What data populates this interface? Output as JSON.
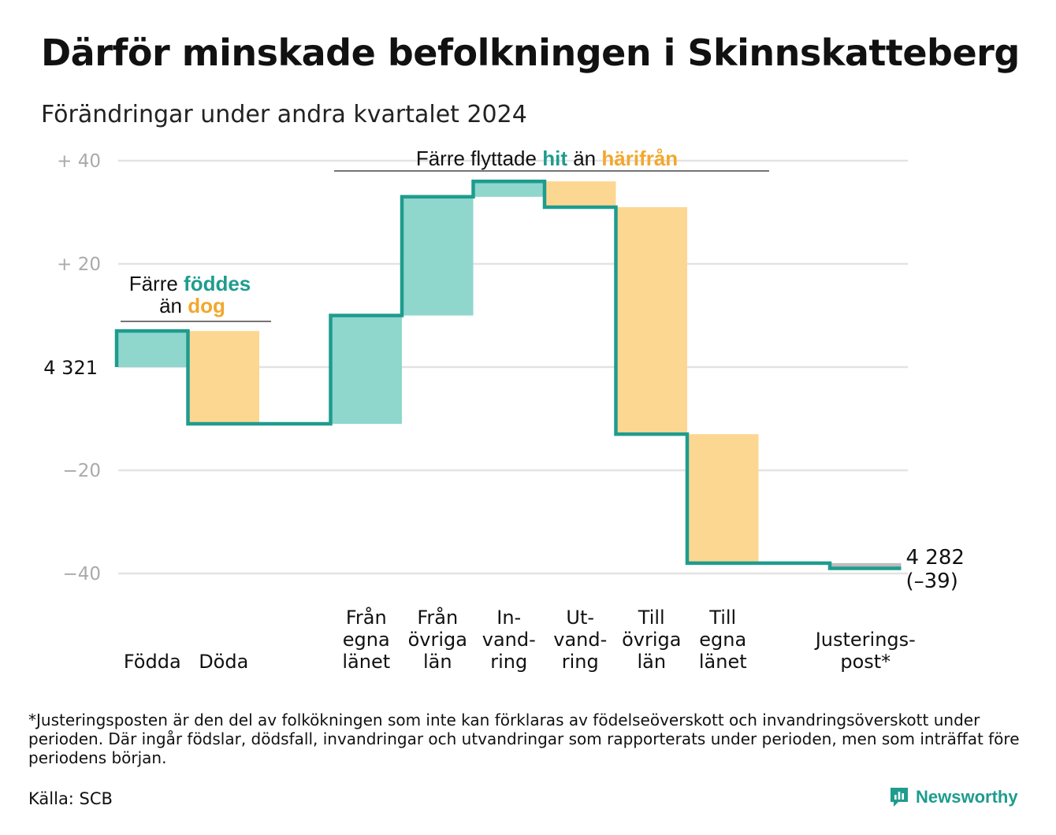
{
  "title": "Därför minskade befolkningen i Skinnskatteberg",
  "subtitle": "Förändringar under andra kvartalet 2024",
  "colors": {
    "increase": "#8fd6cc",
    "decrease": "#fcd792",
    "line": "#1e9c8e",
    "adjust": "#bcbcbc",
    "accent_orange": "#f3a72c"
  },
  "annotations": {
    "births": {
      "line1": "Färre",
      "hl1": "föddes",
      "line2_pre": "än",
      "hl2": "dog"
    },
    "migration": {
      "pre": "Färre flyttade",
      "hl1": "hit",
      "mid": "än",
      "hl2": "härifrån"
    }
  },
  "end_label": {
    "value": "4 282",
    "change": "(–39)"
  },
  "chart_data": {
    "type": "waterfall",
    "start_value": 4321,
    "start_label": "4  321",
    "end_value": 4282,
    "y_ticks": [
      {
        "value": 40,
        "label": "+  40"
      },
      {
        "value": 20,
        "label": "+  20"
      },
      {
        "value": 0,
        "label": ""
      },
      {
        "value": -20,
        "label": "−20"
      },
      {
        "value": -40,
        "label": "−40"
      }
    ],
    "ylim": [
      -45,
      42
    ],
    "categories": [
      {
        "label": [
          "Födda"
        ],
        "change": 7
      },
      {
        "label": [
          "Döda"
        ],
        "change": -18
      },
      {
        "label": [],
        "change": 0
      },
      {
        "label": [
          "Från",
          "egna",
          "länet"
        ],
        "change": 21
      },
      {
        "label": [
          "Från",
          "övriga",
          "län"
        ],
        "change": 23
      },
      {
        "label": [
          "In-",
          "vand-",
          "ring"
        ],
        "change": 3
      },
      {
        "label": [
          "Ut-",
          "vand-",
          "ring"
        ],
        "change": -5
      },
      {
        "label": [
          "Till",
          "övriga",
          "län"
        ],
        "change": -44
      },
      {
        "label": [
          "Till",
          "egna",
          "länet"
        ],
        "change": -25
      },
      {
        "label": [],
        "change": 0
      },
      {
        "label": [
          "Justerings-",
          "post*"
        ],
        "change": -1
      }
    ]
  },
  "footnote": "*Justeringsposten är den del av folkökningen som inte kan förklaras av födelseöverskott och invandringsöverskott under perioden. Där ingår födslar, dödsfall, invandringar och utvandringar som rapporterats under perioden, men som inträffat före periodens början.",
  "source": "Källa: SCB",
  "brand": "Newsworthy"
}
